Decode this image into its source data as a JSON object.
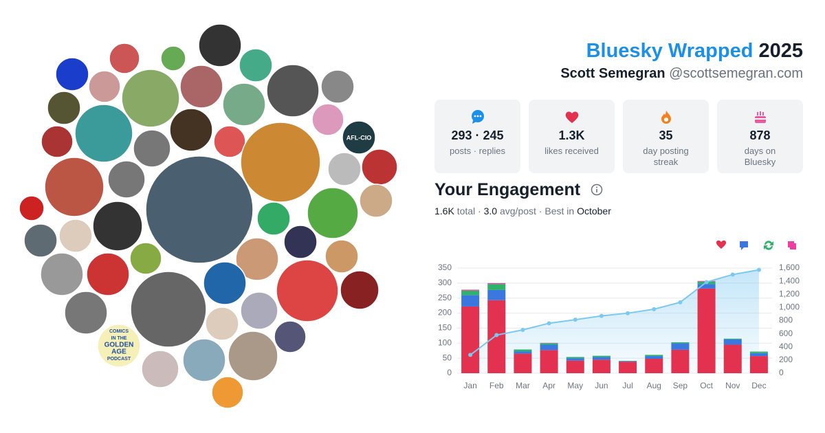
{
  "header": {
    "title_brand": "Bluesky Wrapped",
    "title_year": "2025",
    "name": "Scott Semegran",
    "handle": "@scottsemegran.com"
  },
  "avatars": {
    "afl": "AFL-CIO",
    "podcast": [
      "COMICS",
      "IN THE",
      "GOLDEN",
      "AGE",
      "PODCAST"
    ]
  },
  "stats": [
    {
      "value": "293 · 245",
      "label": "posts · replies"
    },
    {
      "value": "1.3K",
      "label": "likes received"
    },
    {
      "value": "35",
      "label": "day posting streak"
    },
    {
      "value": "878",
      "label": "days on Bluesky"
    }
  ],
  "engagement": {
    "title": "Your Engagement",
    "total": "1.6K",
    "total_label": "total",
    "avg": "3.0",
    "avg_label": "avg/post",
    "best_label": "Best in",
    "best": "October"
  },
  "chart_data": {
    "type": "bar",
    "categories": [
      "Jan",
      "Feb",
      "Mar",
      "Apr",
      "May",
      "Jun",
      "Jul",
      "Aug",
      "Sep",
      "Oct",
      "Nov",
      "Dec"
    ],
    "series": [
      {
        "color": "#e2324f",
        "values": [
          222,
          243,
          65,
          77,
          42,
          45,
          38,
          48,
          78,
          282,
          95,
          57
        ]
      },
      {
        "color": "#3a78e0",
        "values": [
          38,
          34,
          8,
          18,
          8,
          9,
          2,
          9,
          22,
          15,
          18,
          10
        ]
      },
      {
        "color": "#2fb36a",
        "values": [
          15,
          20,
          6,
          5,
          4,
          4,
          1,
          4,
          3,
          8,
          2,
          5
        ]
      },
      {
        "color": "#ec3ea3",
        "values": [
          3,
          3,
          0,
          1,
          0,
          0,
          0,
          0,
          0,
          2,
          0,
          0
        ]
      },
      {
        "color": "#7cc8f0",
        "axis": "y2",
        "values": [
          278,
          580,
          659,
          760,
          814,
          872,
          913,
          974,
          1079,
          1386,
          1501,
          1573
        ]
      }
    ],
    "ylim": [
      0,
      350
    ],
    "yticks": [
      0,
      50,
      100,
      150,
      200,
      250,
      300,
      350
    ],
    "y2lim": [
      0,
      1600
    ],
    "y2ticks": [
      0,
      200,
      400,
      600,
      800,
      {
        "value": 1000,
        "label": "1,000"
      },
      {
        "value": 1200,
        "label": "1,200"
      },
      {
        "value": 1400,
        "label": "1,400"
      },
      {
        "value": 1600,
        "label": "1,600"
      }
    ],
    "grid": true
  }
}
